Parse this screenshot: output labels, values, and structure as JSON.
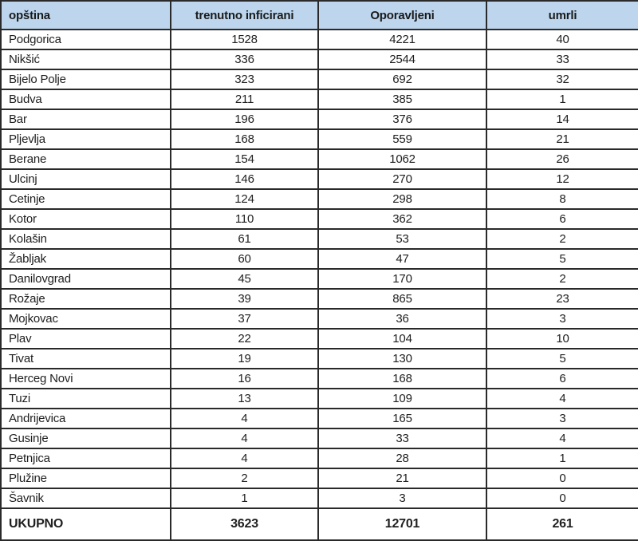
{
  "colors": {
    "header_bg": "#bdd6ee",
    "border_color": "#2a2a2a"
  },
  "chart_data": {
    "type": "table",
    "title": "",
    "columns": [
      "opština",
      "trenutno inficirani",
      "Oporavljeni",
      "umrli"
    ],
    "rows": [
      [
        "Podgorica",
        1528,
        4221,
        40
      ],
      [
        "Nikšić",
        336,
        2544,
        33
      ],
      [
        "Bijelo Polje",
        323,
        692,
        32
      ],
      [
        "Budva",
        211,
        385,
        1
      ],
      [
        "Bar",
        196,
        376,
        14
      ],
      [
        "Pljevlja",
        168,
        559,
        21
      ],
      [
        "Berane",
        154,
        1062,
        26
      ],
      [
        "Ulcinj",
        146,
        270,
        12
      ],
      [
        "Cetinje",
        124,
        298,
        8
      ],
      [
        "Kotor",
        110,
        362,
        6
      ],
      [
        "Kolašin",
        61,
        53,
        2
      ],
      [
        "Žabljak",
        60,
        47,
        5
      ],
      [
        "Danilovgrad",
        45,
        170,
        2
      ],
      [
        "Rožaje",
        39,
        865,
        23
      ],
      [
        "Mojkovac",
        37,
        36,
        3
      ],
      [
        "Plav",
        22,
        104,
        10
      ],
      [
        "Tivat",
        19,
        130,
        5
      ],
      [
        "Herceg Novi",
        16,
        168,
        6
      ],
      [
        "Tuzi",
        13,
        109,
        4
      ],
      [
        "Andrijevica",
        4,
        165,
        3
      ],
      [
        "Gusinje",
        4,
        33,
        4
      ],
      [
        "Petnjica",
        4,
        28,
        1
      ],
      [
        "Plužine",
        2,
        21,
        0
      ],
      [
        "Šavnik",
        1,
        3,
        0
      ]
    ],
    "total_row": [
      "UKUPNO",
      3623,
      12701,
      261
    ]
  }
}
